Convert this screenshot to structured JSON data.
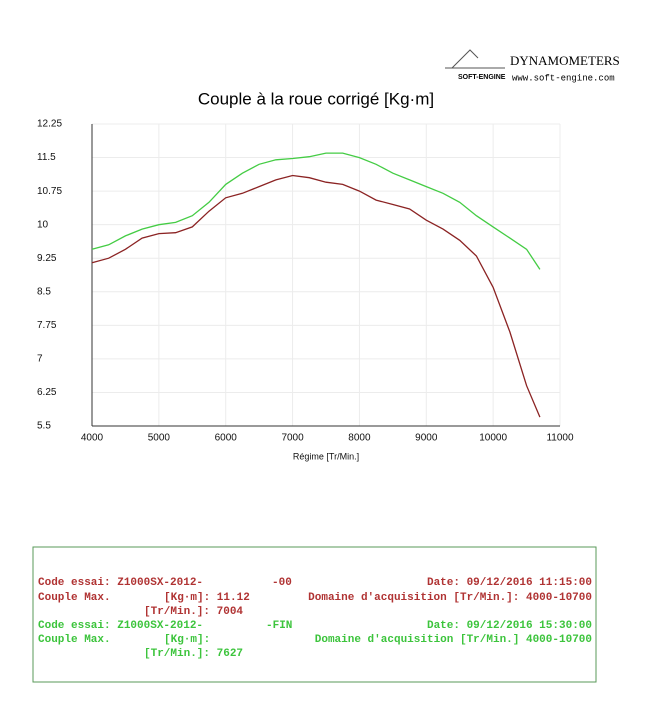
{
  "logo": {
    "brand": "DYNAMOMETERS",
    "mark": "SOFT-ENGINE",
    "url": "www.soft-engine.com"
  },
  "chart_data": {
    "type": "line",
    "title": "Couple à la roue corrigé [Kg·m]",
    "x_label": "Régime [Tr/Min.]",
    "x": [
      4000,
      4250,
      4500,
      4750,
      5000,
      5250,
      5500,
      5750,
      6000,
      6250,
      6500,
      6750,
      7000,
      7250,
      7500,
      7750,
      8000,
      8250,
      8500,
      8750,
      9000,
      9250,
      9500,
      9750,
      10000,
      10250,
      10500,
      10700
    ],
    "series": [
      {
        "color": "#8b2323",
        "values": [
          9.15,
          9.25,
          9.45,
          9.7,
          9.8,
          9.82,
          9.95,
          10.3,
          10.6,
          10.7,
          10.85,
          11.0,
          11.1,
          11.05,
          10.95,
          10.9,
          10.75,
          10.55,
          10.45,
          10.35,
          10.1,
          9.9,
          9.65,
          9.3,
          8.6,
          7.6,
          6.4,
          5.7
        ]
      },
      {
        "color": "#44cc44",
        "values": [
          9.45,
          9.55,
          9.75,
          9.9,
          10.0,
          10.05,
          10.2,
          10.5,
          10.9,
          11.15,
          11.35,
          11.45,
          11.48,
          11.52,
          11.6,
          11.6,
          11.5,
          11.35,
          11.15,
          11.0,
          10.85,
          10.7,
          10.5,
          10.2,
          9.95,
          9.7,
          9.45,
          9.0
        ]
      }
    ],
    "xlim": [
      4000,
      11000
    ],
    "xticks": [
      4000,
      5000,
      6000,
      7000,
      8000,
      9000,
      10000,
      11000
    ],
    "ylim": [
      5.5,
      12.25
    ],
    "yticks": [
      5.5,
      6.25,
      7,
      7.75,
      8.5,
      9.25,
      10,
      10.75,
      11.5,
      12.25
    ],
    "grid": true
  },
  "test_info": {
    "run1": {
      "code": "Code essai: Z1000SX-2012-",
      "code_end": "-00",
      "date": "Date: 09/12/2016 11:15:00",
      "couple": "Couple Max.",
      "couple_val": "[Kg·m]: 11.12",
      "domain": "Domaine d'acquisition [Tr/Min.]: 4000-10700",
      "rpm": "[Tr/Min.]: 7004"
    },
    "run2": {
      "code": "Code essai: Z1000SX-2012-",
      "code_end": "-FIN",
      "date": "Date: 09/12/2016 15:30:00",
      "couple": "Couple Max.",
      "couple_val": "[Kg·m]:",
      "domain": "Domaine d'acquisition [Tr/Min.]  4000-10700",
      "rpm": "[Tr/Min.]: 7627"
    }
  }
}
